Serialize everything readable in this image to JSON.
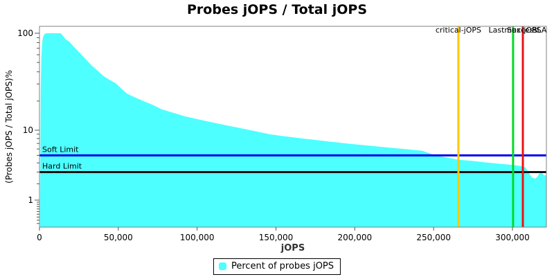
{
  "title": "Probes jOPS / Total jOPS",
  "legend": {
    "label": "Percent of probes jOPS",
    "swatch_icon": "cyan-square",
    "swatch_color": "#4DFFFF"
  },
  "axis": {
    "x_label": "jOPS",
    "y_label": "(Probes jOPS / Total jOPS)%",
    "x_ticks": [
      {
        "value": 0,
        "label": "0"
      },
      {
        "value": 50000,
        "label": "50,000"
      },
      {
        "value": 100000,
        "label": "100,000"
      },
      {
        "value": 150000,
        "label": "150,000"
      },
      {
        "value": 200000,
        "label": "200,000"
      },
      {
        "value": 250000,
        "label": "250,000"
      },
      {
        "value": 300000,
        "label": "300,000"
      }
    ],
    "y_ticks": [
      {
        "value": 100,
        "label": "100"
      },
      {
        "value": 10,
        "label": "10"
      },
      {
        "value": 1,
        "label": "1"
      }
    ]
  },
  "limits": [
    {
      "label": "Soft Limit",
      "value": 5,
      "color": "#0202F0"
    },
    {
      "label": "Hard Limit",
      "value": 3,
      "color": "#101010"
    }
  ],
  "markers": [
    {
      "label": "critical-jOPS",
      "jops": 265700,
      "color": "#FFC800",
      "line": true
    },
    {
      "label": "Last Success",
      "jops": 300400,
      "color": "#00DC28",
      "line": true
    },
    {
      "label": "max-jOPS",
      "jops": 306600,
      "color": "#EE1111",
      "line": true
    },
    {
      "label": "SLA",
      "jops": 317100,
      "color": null,
      "line": false
    }
  ],
  "colors": {
    "area": "#4DFFFF",
    "plot_border": "#808080",
    "tick": "#555555",
    "text": "#000000"
  },
  "chart_data": {
    "type": "area",
    "title": "Probes jOPS / Total jOPS",
    "xlabel": "jOPS",
    "ylabel": "(Probes jOPS / Total jOPS)%",
    "x_range": [
      0,
      321500
    ],
    "y_scale": "log (JFreeChart adjusted log below 10, bottom = 0)",
    "y_ticks": [
      1,
      10,
      100
    ],
    "x_ticks": [
      0,
      50000,
      100000,
      150000,
      200000,
      250000,
      300000
    ],
    "grid": false,
    "legend_position": "bottom-center",
    "h_markers": [
      {
        "label": "Soft Limit",
        "y": 5,
        "color": "#0202F0"
      },
      {
        "label": "Hard Limit",
        "y": 3,
        "color": "#101010"
      }
    ],
    "v_markers": [
      {
        "label": "critical-jOPS",
        "x": 265700,
        "color": "#FFC800"
      },
      {
        "label": "Last Success",
        "x": 300400,
        "color": "#00DC28"
      },
      {
        "label": "max-jOPS",
        "x": 306600,
        "color": "#EE1111"
      },
      {
        "label": "SLA",
        "x": 317100,
        "color": null
      }
    ],
    "series": [
      {
        "name": "Percent of probes jOPS",
        "color": "#4DFFFF",
        "points": [
          [
            400,
            0.5
          ],
          [
            800,
            25
          ],
          [
            1200,
            55
          ],
          [
            1700,
            80
          ],
          [
            2300,
            92
          ],
          [
            3000,
            97
          ],
          [
            4000,
            99.5
          ],
          [
            4800,
            100
          ],
          [
            9000,
            100
          ],
          [
            13600,
            100
          ],
          [
            15000,
            93
          ],
          [
            16500,
            87
          ],
          [
            18900,
            82
          ],
          [
            22000,
            72
          ],
          [
            26300,
            61
          ],
          [
            29800,
            53
          ],
          [
            33400,
            46
          ],
          [
            37000,
            41
          ],
          [
            40800,
            36
          ],
          [
            44500,
            33
          ],
          [
            48300,
            30.5
          ],
          [
            51800,
            27
          ],
          [
            55300,
            24
          ],
          [
            59000,
            22.4
          ],
          [
            62800,
            21
          ],
          [
            66500,
            19.8
          ],
          [
            70300,
            18.7
          ],
          [
            73800,
            17.6
          ],
          [
            77300,
            16.5
          ],
          [
            81000,
            15.8
          ],
          [
            84800,
            15.1
          ],
          [
            88500,
            14.5
          ],
          [
            92200,
            13.9
          ],
          [
            95700,
            13.5
          ],
          [
            99300,
            13.1
          ],
          [
            103000,
            12.7
          ],
          [
            106700,
            12.3
          ],
          [
            117700,
            11.3
          ],
          [
            128700,
            10.4
          ],
          [
            137500,
            9.7
          ],
          [
            146300,
            8.95
          ],
          [
            153500,
            8.6
          ],
          [
            160700,
            8.27
          ],
          [
            168200,
            7.95
          ],
          [
            175700,
            7.67
          ],
          [
            183000,
            7.4
          ],
          [
            190200,
            7.15
          ],
          [
            197500,
            6.9
          ],
          [
            204700,
            6.7
          ],
          [
            212200,
            6.5
          ],
          [
            219600,
            6.29
          ],
          [
            226900,
            6.1
          ],
          [
            234100,
            5.93
          ],
          [
            242900,
            5.7
          ],
          [
            250800,
            5.0
          ],
          [
            258200,
            4.7
          ],
          [
            265700,
            4.4
          ],
          [
            274000,
            4.25
          ],
          [
            282400,
            4.07
          ],
          [
            291400,
            3.9
          ],
          [
            300400,
            3.75
          ],
          [
            306600,
            3.6
          ],
          [
            308300,
            3.45
          ],
          [
            310100,
            3.0
          ],
          [
            312300,
            2.5
          ],
          [
            314500,
            2.4
          ],
          [
            316000,
            2.6
          ],
          [
            316700,
            2.8
          ],
          [
            318000,
            2.95
          ],
          [
            319000,
            2.85
          ],
          [
            320200,
            2.7
          ],
          [
            321500,
            2.7
          ]
        ]
      }
    ]
  }
}
